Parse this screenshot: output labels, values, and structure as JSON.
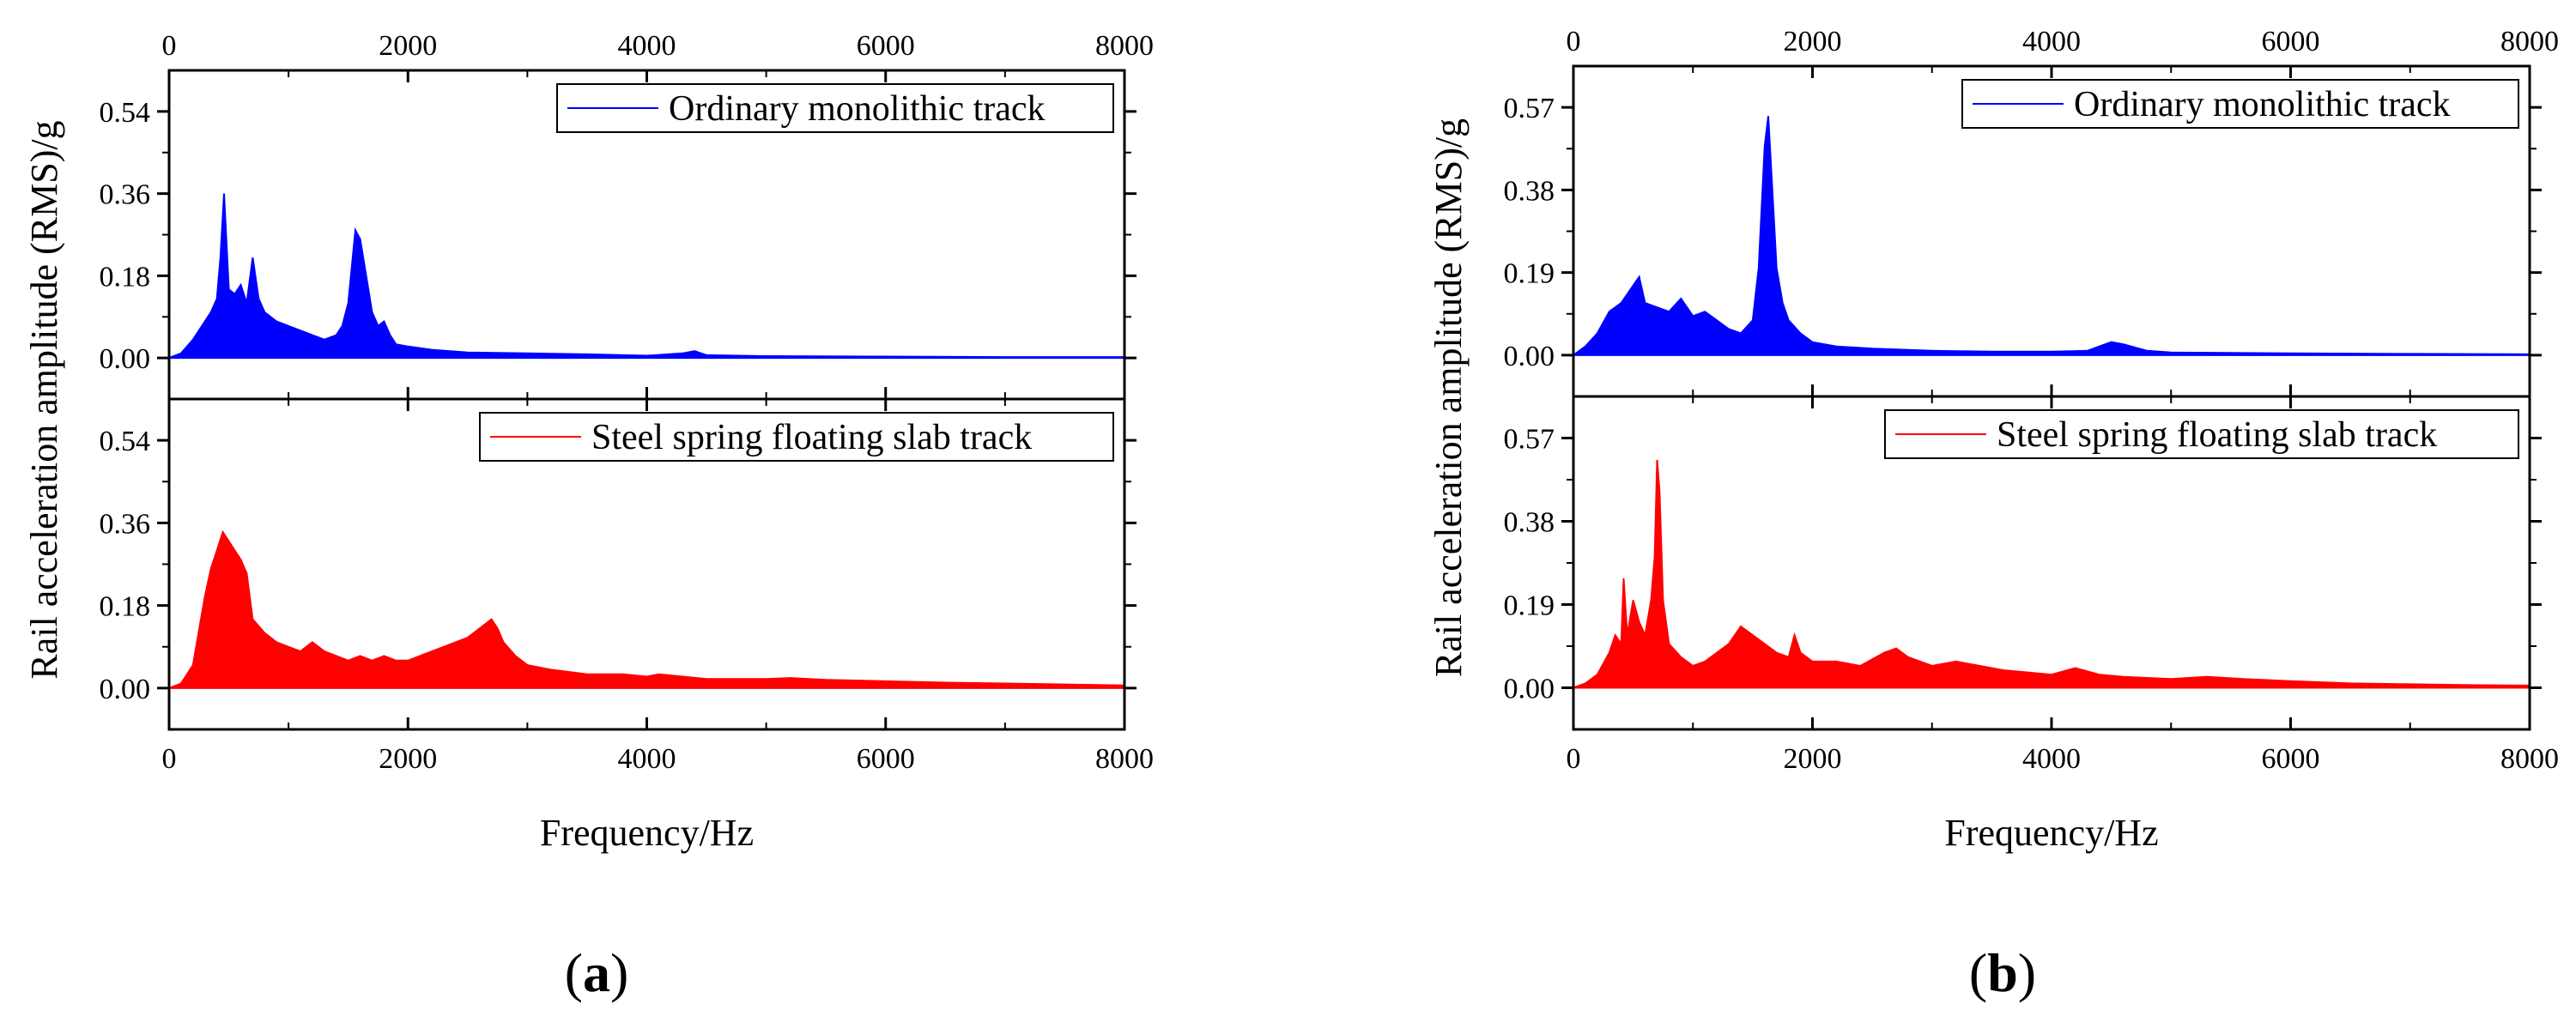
{
  "chart_data": [
    {
      "type": "line",
      "caption_letter": "a",
      "xlabel": "Frequency/Hz",
      "ylabel": "Rail acceleration amplitude (RMS)/g",
      "xlim": [
        0,
        8000
      ],
      "x_ticks": [
        0,
        2000,
        4000,
        6000,
        8000
      ],
      "x_tick_labels": [
        "0",
        "2000",
        "4000",
        "6000",
        "8000"
      ],
      "panels": [
        {
          "series_name": "Ordinary monolithic track",
          "color": "#0000ff",
          "ylim": [
            -0.09,
            0.63
          ],
          "y_ticks": [
            0.0,
            0.18,
            0.36,
            0.54
          ],
          "y_tick_labels": [
            "0.00",
            "0.18",
            "0.36",
            "0.54"
          ],
          "x": [
            0,
            100,
            200,
            300,
            350,
            400,
            430,
            460,
            500,
            550,
            600,
            650,
            700,
            750,
            800,
            900,
            1000,
            1100,
            1200,
            1300,
            1400,
            1450,
            1500,
            1560,
            1600,
            1650,
            1700,
            1750,
            1800,
            1850,
            1900,
            2000,
            2200,
            2500,
            3000,
            3500,
            4000,
            4300,
            4400,
            4500,
            5000,
            6000,
            7000,
            8000
          ],
          "values": [
            0.0,
            0.01,
            0.04,
            0.08,
            0.1,
            0.13,
            0.22,
            0.36,
            0.15,
            0.14,
            0.16,
            0.12,
            0.22,
            0.13,
            0.1,
            0.08,
            0.07,
            0.06,
            0.05,
            0.04,
            0.05,
            0.07,
            0.12,
            0.28,
            0.26,
            0.18,
            0.1,
            0.07,
            0.08,
            0.05,
            0.03,
            0.025,
            0.018,
            0.012,
            0.01,
            0.008,
            0.005,
            0.01,
            0.015,
            0.006,
            0.004,
            0.003,
            0.002,
            0.002
          ]
        },
        {
          "series_name": "Steel spring floating slab track",
          "color": "#ff0000",
          "ylim": [
            -0.09,
            0.63
          ],
          "y_ticks": [
            0.0,
            0.18,
            0.36,
            0.54
          ],
          "y_tick_labels": [
            "0.00",
            "0.18",
            "0.36",
            "0.54"
          ],
          "x": [
            0,
            100,
            200,
            300,
            350,
            400,
            450,
            500,
            550,
            600,
            650,
            700,
            800,
            900,
            1000,
            1100,
            1200,
            1300,
            1400,
            1500,
            1600,
            1700,
            1800,
            1900,
            2000,
            2100,
            2200,
            2300,
            2400,
            2500,
            2600,
            2700,
            2750,
            2800,
            2900,
            3000,
            3200,
            3500,
            3800,
            4000,
            4100,
            4300,
            4500,
            4800,
            5000,
            5200,
            5500,
            6000,
            6500,
            7000,
            7500,
            8000
          ],
          "values": [
            0.0,
            0.01,
            0.05,
            0.2,
            0.26,
            0.3,
            0.34,
            0.32,
            0.3,
            0.28,
            0.25,
            0.15,
            0.12,
            0.1,
            0.09,
            0.08,
            0.1,
            0.08,
            0.07,
            0.06,
            0.07,
            0.06,
            0.07,
            0.06,
            0.06,
            0.07,
            0.08,
            0.09,
            0.1,
            0.11,
            0.13,
            0.15,
            0.13,
            0.1,
            0.07,
            0.05,
            0.04,
            0.03,
            0.03,
            0.025,
            0.03,
            0.025,
            0.02,
            0.02,
            0.02,
            0.022,
            0.018,
            0.015,
            0.012,
            0.01,
            0.008,
            0.006
          ]
        }
      ]
    },
    {
      "type": "line",
      "caption_letter": "b",
      "xlabel": "Frequency/Hz",
      "ylabel": "Rail acceleration amplitude (RMS)/g",
      "xlim": [
        0,
        8000
      ],
      "x_ticks": [
        0,
        2000,
        4000,
        6000,
        8000
      ],
      "x_tick_labels": [
        "0",
        "2000",
        "4000",
        "6000",
        "8000"
      ],
      "panels": [
        {
          "series_name": "Ordinary monolithic track",
          "color": "#0000ff",
          "ylim": [
            -0.095,
            0.665
          ],
          "y_ticks": [
            0.0,
            0.19,
            0.38,
            0.57
          ],
          "y_tick_labels": [
            "0.00",
            "0.19",
            "0.38",
            "0.57"
          ],
          "x": [
            0,
            100,
            200,
            300,
            400,
            500,
            550,
            600,
            700,
            800,
            900,
            1000,
            1100,
            1200,
            1300,
            1400,
            1500,
            1550,
            1600,
            1630,
            1650,
            1700,
            1750,
            1800,
            1900,
            2000,
            2200,
            2500,
            3000,
            3500,
            4000,
            4300,
            4400,
            4500,
            4600,
            4800,
            5000,
            6000,
            7000,
            8000
          ],
          "values": [
            0.0,
            0.02,
            0.05,
            0.1,
            0.12,
            0.16,
            0.18,
            0.12,
            0.11,
            0.1,
            0.13,
            0.09,
            0.1,
            0.08,
            0.06,
            0.05,
            0.08,
            0.2,
            0.48,
            0.55,
            0.45,
            0.2,
            0.12,
            0.08,
            0.05,
            0.03,
            0.02,
            0.015,
            0.01,
            0.008,
            0.008,
            0.01,
            0.02,
            0.03,
            0.025,
            0.01,
            0.006,
            0.004,
            0.003,
            0.002
          ]
        },
        {
          "series_name": "Steel spring floating slab track",
          "color": "#ff0000",
          "ylim": [
            -0.095,
            0.665
          ],
          "y_ticks": [
            0.0,
            0.19,
            0.38,
            0.57
          ],
          "y_tick_labels": [
            "0.00",
            "0.19",
            "0.38",
            "0.57"
          ],
          "x": [
            0,
            100,
            200,
            300,
            350,
            400,
            420,
            450,
            500,
            550,
            600,
            650,
            680,
            700,
            720,
            750,
            800,
            900,
            1000,
            1100,
            1200,
            1300,
            1400,
            1500,
            1600,
            1700,
            1800,
            1850,
            1900,
            2000,
            2200,
            2400,
            2600,
            2700,
            2800,
            3000,
            3200,
            3400,
            3600,
            3800,
            4000,
            4200,
            4400,
            4600,
            5000,
            5300,
            5600,
            6000,
            6500,
            7000,
            7500,
            8000
          ],
          "values": [
            0.0,
            0.01,
            0.03,
            0.08,
            0.12,
            0.1,
            0.25,
            0.12,
            0.2,
            0.15,
            0.12,
            0.2,
            0.3,
            0.52,
            0.45,
            0.2,
            0.1,
            0.07,
            0.05,
            0.06,
            0.08,
            0.1,
            0.14,
            0.12,
            0.1,
            0.08,
            0.07,
            0.12,
            0.08,
            0.06,
            0.06,
            0.05,
            0.08,
            0.09,
            0.07,
            0.05,
            0.06,
            0.05,
            0.04,
            0.035,
            0.03,
            0.045,
            0.03,
            0.025,
            0.02,
            0.025,
            0.02,
            0.015,
            0.01,
            0.008,
            0.006,
            0.005
          ]
        }
      ]
    }
  ]
}
